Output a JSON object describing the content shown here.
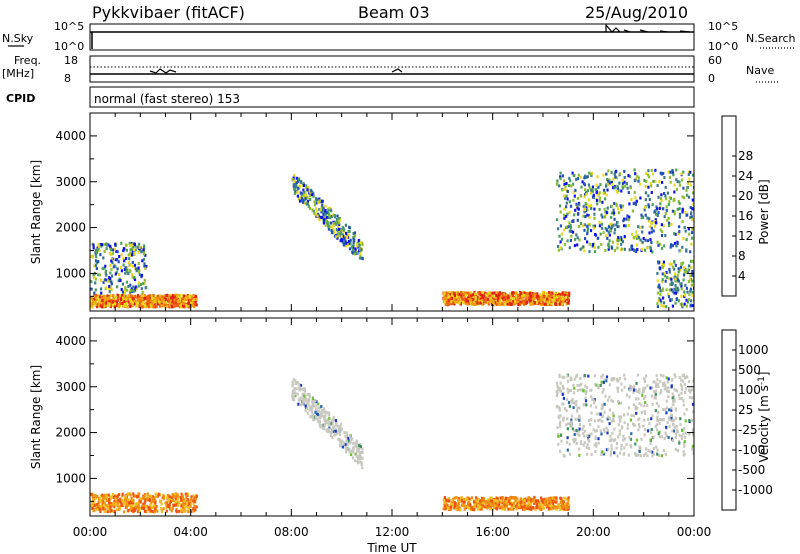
{
  "header": {
    "station": "Pykkvibaer (fitACF)",
    "beam": "Beam 03",
    "date": "25/Aug/2010"
  },
  "strip_panels": {
    "nsky": {
      "label": "N.Sky",
      "right_label": "N.Search",
      "left_ticks": [
        "10^5",
        "10^0"
      ],
      "right_ticks": [
        "10^5",
        "10^0"
      ]
    },
    "freq": {
      "label_line1": "Freq.",
      "label_line2": "[MHz]",
      "left_ticks": [
        "18",
        "8"
      ],
      "right_ticks": [
        "60",
        "0"
      ],
      "right_label": "Nave"
    },
    "cpid": {
      "label": "CPID",
      "text": "normal (fast stereo) 153"
    }
  },
  "chart_data": [
    {
      "type": "heatmap",
      "title": "",
      "quantity": "Power",
      "xlabel": "",
      "ylabel": "Slant Range [km]",
      "x_range_hours": [
        0,
        24
      ],
      "ylim_km": [
        180,
        4500
      ],
      "yticks": [
        1000,
        2000,
        3000,
        4000
      ],
      "colorbar": {
        "label": "Power [dB]",
        "ticks": [
          "4",
          "8",
          "12",
          "16",
          "20",
          "24",
          "28"
        ],
        "colors": [
          "#1010e8",
          "#2050b8",
          "#3a7890",
          "#4aa05a",
          "#90c030",
          "#e8d820",
          "#f0a010",
          "#f06010",
          "#e02010"
        ]
      },
      "scatter_regions": [
        {
          "t": [
            0.0,
            4.2
          ],
          "range_km": [
            300,
            560
          ],
          "level": "strong",
          "note": "near-range backscatter 00-04 UT"
        },
        {
          "t": [
            0.0,
            2.2
          ],
          "range_km": [
            600,
            1700
          ],
          "level": "medium"
        },
        {
          "t": [
            8.0,
            10.8
          ],
          "range_km": [
            1300,
            3100
          ],
          "level": "medium",
          "note": "descending arc"
        },
        {
          "t": [
            14.0,
            19.0
          ],
          "range_km": [
            350,
            620
          ],
          "level": "strong"
        },
        {
          "t": [
            18.5,
            24.0
          ],
          "range_km": [
            1500,
            3300
          ],
          "level": "medium",
          "note": "far-range band"
        },
        {
          "t": [
            22.5,
            24.0
          ],
          "range_km": [
            300,
            1300
          ],
          "level": "medium"
        }
      ]
    },
    {
      "type": "heatmap",
      "title": "",
      "quantity": "Velocity",
      "xlabel": "Time UT",
      "ylabel": "Slant Range [km]",
      "x_range_hours": [
        0,
        24
      ],
      "ylim_km": [
        180,
        4500
      ],
      "yticks": [
        1000,
        2000,
        3000,
        4000
      ],
      "xticks": [
        "00:00",
        "04:00",
        "08:00",
        "12:00",
        "16:00",
        "20:00",
        "00:00"
      ],
      "colorbar": {
        "label": "Velocity [m s^-1]",
        "ticks": [
          "1000",
          "500",
          "100",
          "25",
          "-25",
          "-100",
          "-500",
          "-1000"
        ],
        "colors": [
          "#1838c8",
          "#2868a8",
          "#3a9060",
          "#70c030",
          "#c8c8c0",
          "#f0c020",
          "#f09010",
          "#f05010",
          "#e01010"
        ]
      },
      "scatter_regions": [
        {
          "t": [
            0.0,
            4.2
          ],
          "range_km": [
            300,
            700
          ],
          "level": "negative",
          "note": "mostly -100 to -500 m/s"
        },
        {
          "t": [
            8.0,
            10.8
          ],
          "range_km": [
            1300,
            3100
          ],
          "level": "near-zero",
          "note": "ground scatter arc"
        },
        {
          "t": [
            14.0,
            19.0
          ],
          "range_km": [
            350,
            620
          ],
          "level": "negative"
        },
        {
          "t": [
            18.5,
            24.0
          ],
          "range_km": [
            1500,
            3300
          ],
          "level": "near-zero"
        }
      ]
    }
  ]
}
